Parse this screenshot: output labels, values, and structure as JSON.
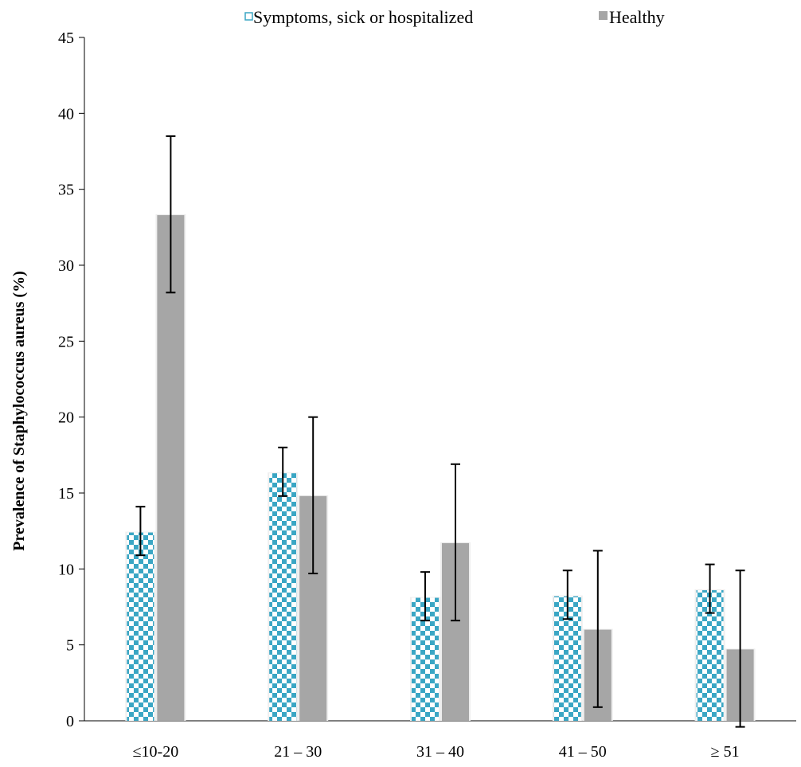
{
  "chart_data": {
    "type": "bar",
    "title": "",
    "xlabel": "",
    "ylabel": "Prevalence of  Staphylococcus aureus (%)",
    "ylim": [
      0,
      45
    ],
    "yticks": [
      0,
      5,
      10,
      15,
      20,
      25,
      30,
      35,
      40,
      45
    ],
    "grid": false,
    "legend_position": "top",
    "categories": [
      "≤10-20",
      "21 – 30",
      "31 – 40",
      "41 – 50",
      "≥ 51"
    ],
    "series": [
      {
        "name": "Symptoms, sick or hospitalized",
        "values": [
          12.4,
          16.3,
          8.1,
          8.2,
          8.6
        ],
        "error_low": [
          10.9,
          14.8,
          6.6,
          6.7,
          7.1
        ],
        "error_high": [
          14.1,
          18.0,
          9.8,
          9.9,
          10.3
        ],
        "pattern": "checkerboard",
        "color": "#3aa6c4"
      },
      {
        "name": "Healthy",
        "values": [
          33.3,
          14.8,
          11.7,
          6.0,
          4.7
        ],
        "error_low": [
          28.2,
          9.7,
          6.6,
          0.9,
          -0.4
        ],
        "error_high": [
          38.5,
          20.0,
          16.9,
          11.2,
          9.9
        ],
        "pattern": "solid",
        "color": "#a6a6a6"
      }
    ]
  }
}
